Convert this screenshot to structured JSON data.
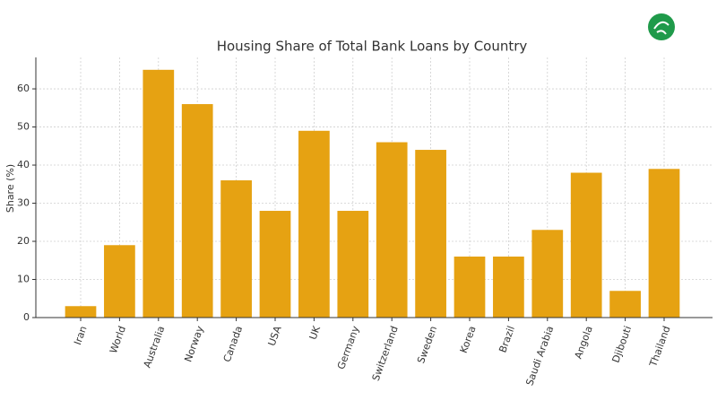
{
  "chart_data": {
    "type": "bar",
    "title": "Housing Share of Total Bank Loans by Country",
    "y_label": "Share (%)",
    "categories": [
      "Iran",
      "World",
      "Australia",
      "Norway",
      "Canada",
      "USA",
      "UK",
      "Germany",
      "Switzerland",
      "Sweden",
      "Korea",
      "Brazil",
      "Saudi Arabia",
      "Angola",
      "Djibouti",
      "Thailand"
    ],
    "values": [
      3,
      19,
      65,
      56,
      36,
      28,
      49,
      28,
      46,
      44,
      16,
      16,
      23,
      38,
      7,
      39
    ],
    "color": "#e6a212",
    "ylim": [
      0,
      68.25
    ],
    "yticks": [
      0,
      10,
      20,
      30,
      40,
      50,
      60
    ],
    "grid": true
  }
}
